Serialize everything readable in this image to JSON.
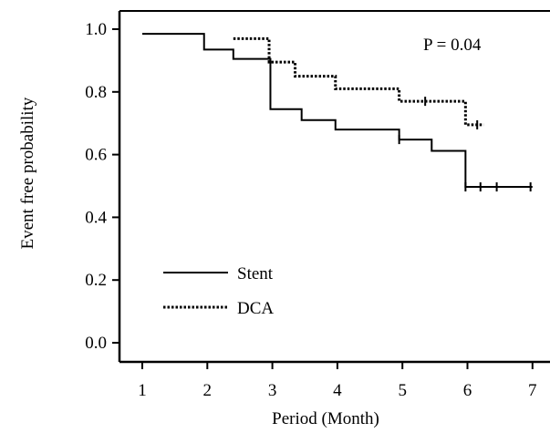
{
  "chart_data": {
    "type": "line",
    "subtype": "kaplan-meier step plot",
    "title": "",
    "xlabel": "Period (Month)",
    "ylabel": "Event free probability",
    "xlim": [
      1,
      7
    ],
    "ylim": [
      0.0,
      1.0
    ],
    "x_ticks": [
      1,
      2,
      3,
      4,
      5,
      6,
      7
    ],
    "x_tick_labels": [
      "1",
      "2",
      "3",
      "4",
      "5",
      "6",
      "7"
    ],
    "y_ticks": [
      0.0,
      0.2,
      0.4,
      0.6,
      0.8,
      1.0
    ],
    "y_tick_labels": [
      "0.0",
      "0.2",
      "0.4",
      "0.6",
      "0.8",
      "1.0"
    ],
    "grid": false,
    "legend_position": "lower-left",
    "annotation": "P = 0.04",
    "series": [
      {
        "name": "Stent",
        "line_style": "solid",
        "color": "#000000",
        "steps": [
          {
            "x": 1.0,
            "y": 0.985
          },
          {
            "x": 1.95,
            "y": 0.935
          },
          {
            "x": 2.4,
            "y": 0.905
          },
          {
            "x": 2.97,
            "y": 0.745
          },
          {
            "x": 3.45,
            "y": 0.71
          },
          {
            "x": 3.97,
            "y": 0.68
          },
          {
            "x": 4.95,
            "y": 0.648
          },
          {
            "x": 5.45,
            "y": 0.612
          },
          {
            "x": 5.97,
            "y": 0.497
          }
        ],
        "end_x": 7.0,
        "censored": [
          {
            "x": 4.95,
            "y": 0.648
          },
          {
            "x": 5.97,
            "y": 0.497
          },
          {
            "x": 6.2,
            "y": 0.497
          },
          {
            "x": 6.45,
            "y": 0.497
          },
          {
            "x": 6.97,
            "y": 0.497
          }
        ]
      },
      {
        "name": "DCA",
        "line_style": "dotted",
        "color": "#000000",
        "steps": [
          {
            "x": 2.4,
            "y": 0.97
          },
          {
            "x": 2.95,
            "y": 0.895
          },
          {
            "x": 3.35,
            "y": 0.85
          },
          {
            "x": 3.97,
            "y": 0.81
          },
          {
            "x": 4.95,
            "y": 0.77
          },
          {
            "x": 5.97,
            "y": 0.695
          }
        ],
        "end_x": 6.25,
        "censored": [
          {
            "x": 5.35,
            "y": 0.77
          },
          {
            "x": 6.15,
            "y": 0.695
          }
        ]
      }
    ]
  }
}
